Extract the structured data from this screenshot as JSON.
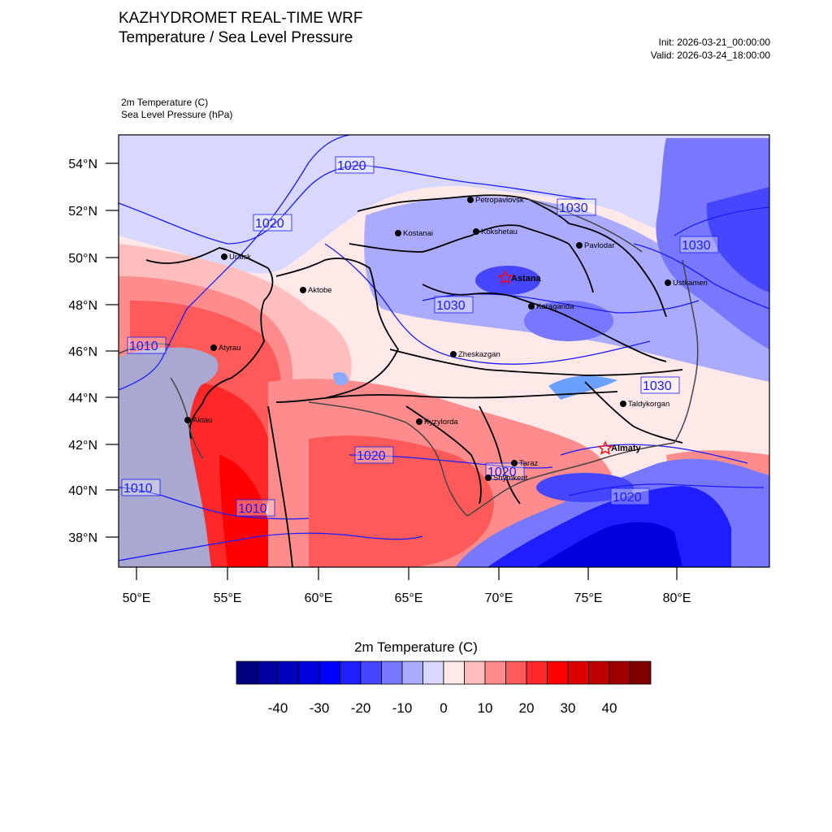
{
  "header": {
    "title_line1": "KAZHYDROMET REAL-TIME WRF",
    "title_line2": "Temperature / Sea Level Pressure",
    "init": "Init: 2026-03-21_00:00:00",
    "valid": "Valid: 2026-03-24_18:00:00",
    "field1": "2m Temperature   (C)",
    "field2": "Sea Level Pressure   (hPa)"
  },
  "map": {
    "lat_labels": [
      "54°N",
      "52°N",
      "50°N",
      "48°N",
      "46°N",
      "44°N",
      "42°N",
      "40°N",
      "38°N"
    ],
    "lon_labels": [
      "50°E",
      "55°E",
      "60°E",
      "65°E",
      "70°E",
      "75°E",
      "80°E"
    ],
    "cities": [
      {
        "name": "Petropavlovsk",
        "capital": false
      },
      {
        "name": "Kostanai",
        "capital": false
      },
      {
        "name": "Kokshetau",
        "capital": false
      },
      {
        "name": "Pavlodar",
        "capital": false
      },
      {
        "name": "Uralsk",
        "capital": false
      },
      {
        "name": "Aktobe",
        "capital": false
      },
      {
        "name": "Astana",
        "capital": true
      },
      {
        "name": "Ustkamen",
        "capital": false
      },
      {
        "name": "Karaganda",
        "capital": false
      },
      {
        "name": "Atyrau",
        "capital": false
      },
      {
        "name": "Zheskazgan",
        "capital": false
      },
      {
        "name": "Taldykorgan",
        "capital": false
      },
      {
        "name": "Aktau",
        "capital": false
      },
      {
        "name": "Kyzylorda",
        "capital": false
      },
      {
        "name": "Almaty",
        "capital": true
      },
      {
        "name": "Taraz",
        "capital": false
      },
      {
        "name": "Shymkent",
        "capital": false
      }
    ],
    "isobar_labels": [
      "1020",
      "1020",
      "1030",
      "1030",
      "1030",
      "1010",
      "1030",
      "1020",
      "1020",
      "1010",
      "1020",
      "1010"
    ],
    "colors": {
      "isobar": "#1a1aff",
      "border": "#000000",
      "capital_marker": "#ff0000",
      "sea": "#a8a8d0"
    }
  },
  "colorbar": {
    "title": "2m Temperature  (C)",
    "colors": [
      "#000080",
      "#00009f",
      "#0000bf",
      "#0000df",
      "#0000ff",
      "#1e1eff",
      "#4646ff",
      "#7878ff",
      "#aaaaff",
      "#d7d7ff",
      "#ffe8e8",
      "#ffbebe",
      "#ff8c8c",
      "#ff5a5a",
      "#ff2828",
      "#ff0000",
      "#df0000",
      "#bf0000",
      "#9f0000",
      "#800000"
    ],
    "tick_labels": [
      "-40",
      "-30",
      "-20",
      "-10",
      "0",
      "10",
      "20",
      "30",
      "40"
    ]
  }
}
